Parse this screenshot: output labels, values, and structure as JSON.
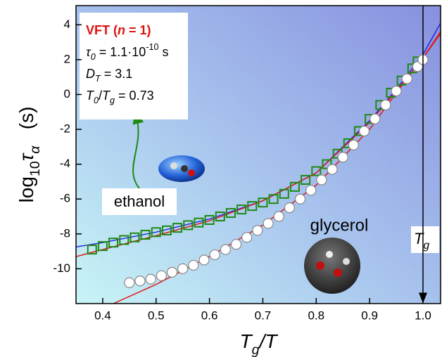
{
  "chart_data": {
    "type": "scatter",
    "xlabel": [
      {
        "text": "T",
        "italic": true
      },
      {
        "text": "g",
        "italic": true,
        "sub": true
      },
      {
        "text": "/T",
        "italic": true
      }
    ],
    "ylabel": [
      {
        "text": "log"
      },
      {
        "text": "10",
        "sub": true
      },
      {
        "text": "τ",
        "italic": true
      },
      {
        "text": "α",
        "italic": true,
        "sub": true
      },
      {
        "text": "   (s)"
      }
    ],
    "xlim": [
      0.35,
      1.033
    ],
    "ylim": [
      -12,
      5.1
    ],
    "xticks": [
      0.4,
      0.5,
      0.6,
      0.7,
      0.8,
      0.9,
      {
        "value": 1,
        "label": "1.0"
      }
    ],
    "yticks": [
      4,
      2,
      0,
      -2,
      -4,
      -6,
      -8,
      -10
    ],
    "series": [
      {
        "name": "ethanol",
        "marker": "square",
        "color": "#1e8a12",
        "x": [
          0.38,
          0.4,
          0.42,
          0.44,
          0.46,
          0.48,
          0.5,
          0.52,
          0.54,
          0.56,
          0.58,
          0.6,
          0.62,
          0.64,
          0.66,
          0.68,
          0.7,
          0.72,
          0.74,
          0.76,
          0.78,
          0.8,
          0.82,
          0.84,
          0.86,
          0.88,
          0.9,
          0.92,
          0.94,
          0.96,
          0.98,
          0.99
        ],
        "values": [
          -8.9,
          -8.7,
          -8.5,
          -8.35,
          -8.2,
          -8.05,
          -7.9,
          -7.8,
          -7.65,
          -7.5,
          -7.35,
          -7.2,
          -7.0,
          -6.8,
          -6.6,
          -6.4,
          -6.2,
          -6.0,
          -5.7,
          -5.3,
          -4.9,
          -4.4,
          -4.0,
          -3.4,
          -2.8,
          -2.1,
          -1.4,
          -0.6,
          0.1,
          0.8,
          1.5,
          1.9
        ]
      },
      {
        "name": "glycerol",
        "marker": "circle",
        "color": "#999999",
        "x": [
          0.45,
          0.47,
          0.49,
          0.51,
          0.53,
          0.55,
          0.57,
          0.59,
          0.61,
          0.63,
          0.65,
          0.67,
          0.69,
          0.71,
          0.73,
          0.75,
          0.77,
          0.79,
          0.81,
          0.83,
          0.85,
          0.87,
          0.89,
          0.91,
          0.93,
          0.95,
          0.97,
          0.99,
          1.0
        ],
        "values": [
          -10.8,
          -10.7,
          -10.6,
          -10.4,
          -10.2,
          -10.0,
          -9.8,
          -9.5,
          -9.2,
          -8.9,
          -8.6,
          -8.2,
          -7.8,
          -7.4,
          -7.0,
          -6.5,
          -6.0,
          -5.5,
          -4.9,
          -4.3,
          -3.6,
          -2.9,
          -2.1,
          -1.4,
          -0.6,
          0.2,
          0.9,
          1.6,
          2.0
        ]
      }
    ],
    "fits": [
      {
        "color": "#2a2ae0",
        "x": [
          0.35,
          0.4,
          0.5,
          0.6,
          0.7,
          0.8,
          0.9,
          0.95,
          1.0,
          1.033
        ],
        "values": [
          -8.75,
          -8.5,
          -7.9,
          -7.15,
          -6.1,
          -4.5,
          -1.5,
          0.3,
          2.3,
          4.1
        ]
      },
      {
        "color": "#e01818",
        "x": [
          0.35,
          0.4,
          0.5,
          0.6,
          0.7,
          0.8,
          0.9,
          0.95,
          1.0,
          1.033
        ],
        "values": [
          -9.3,
          -8.9,
          -8.1,
          -7.25,
          -6.1,
          -4.5,
          -1.6,
          0.2,
          2.1,
          3.6
        ]
      },
      {
        "color": "#e01818",
        "x": [
          0.42,
          0.5,
          0.6,
          0.7,
          0.8,
          0.9,
          0.95,
          1.0,
          1.033
        ],
        "values": [
          -12,
          -10.9,
          -9.3,
          -7.5,
          -5.2,
          -2.0,
          0.1,
          2.1,
          3.5
        ]
      }
    ],
    "tg_line": {
      "x": 1,
      "label": [
        {
          "text": "T",
          "italic": true
        },
        {
          "text": "g",
          "italic": true,
          "sub": true
        }
      ]
    },
    "vft_box": [
      [
        {
          "text": "VFT (",
          "bold": true,
          "red": true
        },
        {
          "text": "n",
          "bold": true,
          "italic": true,
          "red": true
        },
        {
          "text": " = 1)",
          "bold": true,
          "red": true
        }
      ],
      [
        {
          "text": "τ",
          "italic": true
        },
        {
          "text": "0",
          "italic": true,
          "sub": true
        },
        {
          "text": " = 1.1·10"
        },
        {
          "text": "-10",
          "sup": true
        },
        {
          "text": " s"
        }
      ],
      [
        {
          "text": "D",
          "italic": true
        },
        {
          "text": "T",
          "italic": true,
          "sub": true
        },
        {
          "text": " = 3.1"
        }
      ],
      [
        {
          "text": "T",
          "italic": true
        },
        {
          "text": "0",
          "italic": true,
          "sub": true
        },
        {
          "text": "/"
        },
        {
          "text": "T",
          "italic": true
        },
        {
          "text": "g",
          "italic": true,
          "sub": true
        },
        {
          "text": " = 0.73"
        }
      ]
    ]
  }
}
